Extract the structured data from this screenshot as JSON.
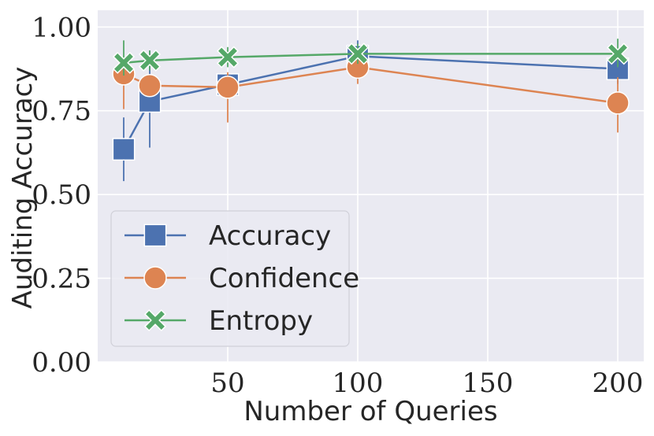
{
  "chart_data": {
    "type": "line",
    "title": "",
    "xlabel": "Number of Queries",
    "ylabel": "Auditing Accuracy",
    "xlim": [
      0,
      210
    ],
    "ylim": [
      0.0,
      1.05
    ],
    "xticks": [
      50,
      100,
      150,
      200
    ],
    "xtick_labels": [
      "50",
      "100",
      "150",
      "200"
    ],
    "yticks": [
      0.0,
      0.25,
      0.5,
      0.75,
      1.0
    ],
    "ytick_labels": [
      "0.00",
      "0.25",
      "0.50",
      "0.75",
      "1.00"
    ],
    "grid": true,
    "legend_position": "lower-left",
    "x": [
      10,
      20,
      50,
      100,
      200
    ],
    "series": [
      {
        "name": "Accuracy",
        "marker": "square",
        "color": "#4c72b0",
        "values": [
          0.635,
          0.778,
          0.828,
          0.913,
          0.875
        ],
        "err_low": [
          0.54,
          0.64,
          0.79,
          0.87,
          0.83
        ],
        "err_high": [
          0.73,
          0.93,
          0.86,
          0.96,
          0.92
        ]
      },
      {
        "name": "Confidence",
        "marker": "circle",
        "color": "#dd8452",
        "values": [
          0.86,
          0.825,
          0.82,
          0.88,
          0.773
        ],
        "err_low": [
          0.755,
          0.795,
          0.715,
          0.83,
          0.685
        ],
        "err_high": [
          0.895,
          0.86,
          0.865,
          0.93,
          0.85
        ]
      },
      {
        "name": "Entropy",
        "marker": "x",
        "color": "#55a868",
        "values": [
          0.893,
          0.9,
          0.91,
          0.92,
          0.92
        ],
        "err_low": [
          0.855,
          0.87,
          0.88,
          0.89,
          0.88
        ],
        "err_high": [
          0.96,
          0.93,
          0.94,
          0.95,
          0.965
        ]
      }
    ]
  }
}
